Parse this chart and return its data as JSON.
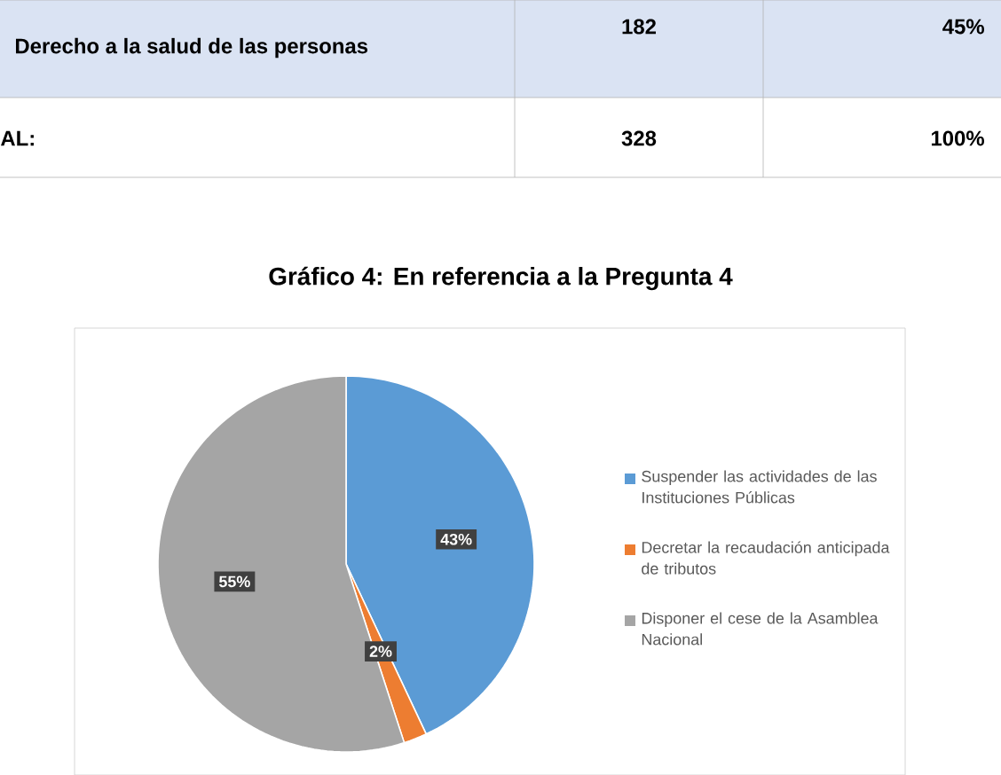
{
  "chart_data": {
    "type": "pie",
    "title": "Gráfico 4: En referencia a la Pregunta 4",
    "categories": [
      "Suspender las actividades de las Instituciones Públicas",
      "Decretar la recaudación anticipada de tributos",
      "Disponer el cese de la Asamblea Nacional"
    ],
    "values": [
      43,
      2,
      55
    ],
    "colors": [
      "#5b9bd5",
      "#ed7d31",
      "#a5a5a5"
    ],
    "value_labels": [
      "43%",
      "2%",
      "55%"
    ],
    "legend": "right",
    "annotations": [
      "Derecho a la salud de las personas",
      "182",
      "45%",
      "AL:",
      "328",
      "100%"
    ]
  }
}
